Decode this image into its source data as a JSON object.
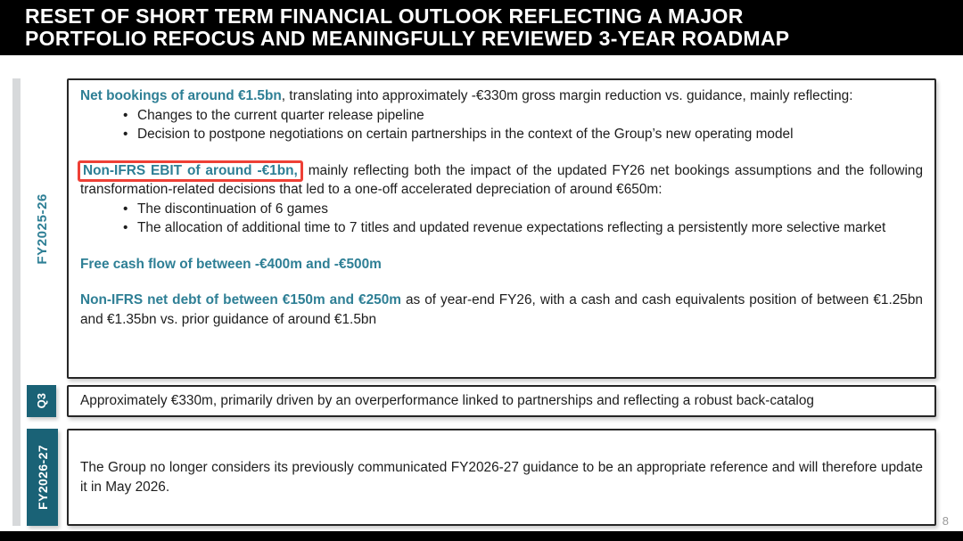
{
  "header": {
    "title_line1": "RESET OF SHORT TERM FINANCIAL OUTLOOK REFLECTING A MAJOR",
    "title_line2": "PORTFOLIO REFOCUS AND MEANINGFULLY REVIEWED 3-YEAR ROADMAP"
  },
  "colors": {
    "accent_teal": "#2E7F95",
    "label_teal_bg": "#1A6276",
    "highlight_red": "#EE4036",
    "header_bg": "#000000"
  },
  "fy2025": {
    "label": "FY2025-26",
    "net_bookings": {
      "lead": "Net bookings of around €1.5bn",
      "rest": ", translating into approximately -€330m gross margin reduction vs. guidance, mainly reflecting:",
      "bullets": [
        "Changes to the current quarter release pipeline",
        "Decision to postpone negotiations on certain partnerships in the context of the Group’s new operating model"
      ]
    },
    "ebit": {
      "lead": "Non-IFRS EBIT of around -€1bn,",
      "rest": " mainly reflecting both the impact of the updated FY26 net bookings assumptions and the following transformation-related decisions that led to a one-off accelerated depreciation of around €650m:",
      "bullets": [
        "The discontinuation of 6 games",
        "The allocation of additional time to 7 titles and updated revenue expectations reflecting a persistently more selective market"
      ]
    },
    "fcf": {
      "lead": "Free cash flow of between -€400m and -€500m"
    },
    "net_debt": {
      "lead": "Non-IFRS net debt of between €150m and €250m",
      "rest": " as of year-end FY26, with a cash and cash equivalents position of between €1.25bn and €1.35bn vs. prior guidance of around €1.5bn"
    }
  },
  "q3": {
    "label": "Q3",
    "text": "Approximately €330m, primarily driven by an overperformance linked to partnerships and reflecting a robust back-catalog"
  },
  "fy2026": {
    "label": "FY2026-27",
    "text": "The Group no longer considers its previously communicated FY2026-27 guidance to be an appropriate reference and will therefore update it in May 2026."
  },
  "footer": {
    "page_number": "8"
  }
}
